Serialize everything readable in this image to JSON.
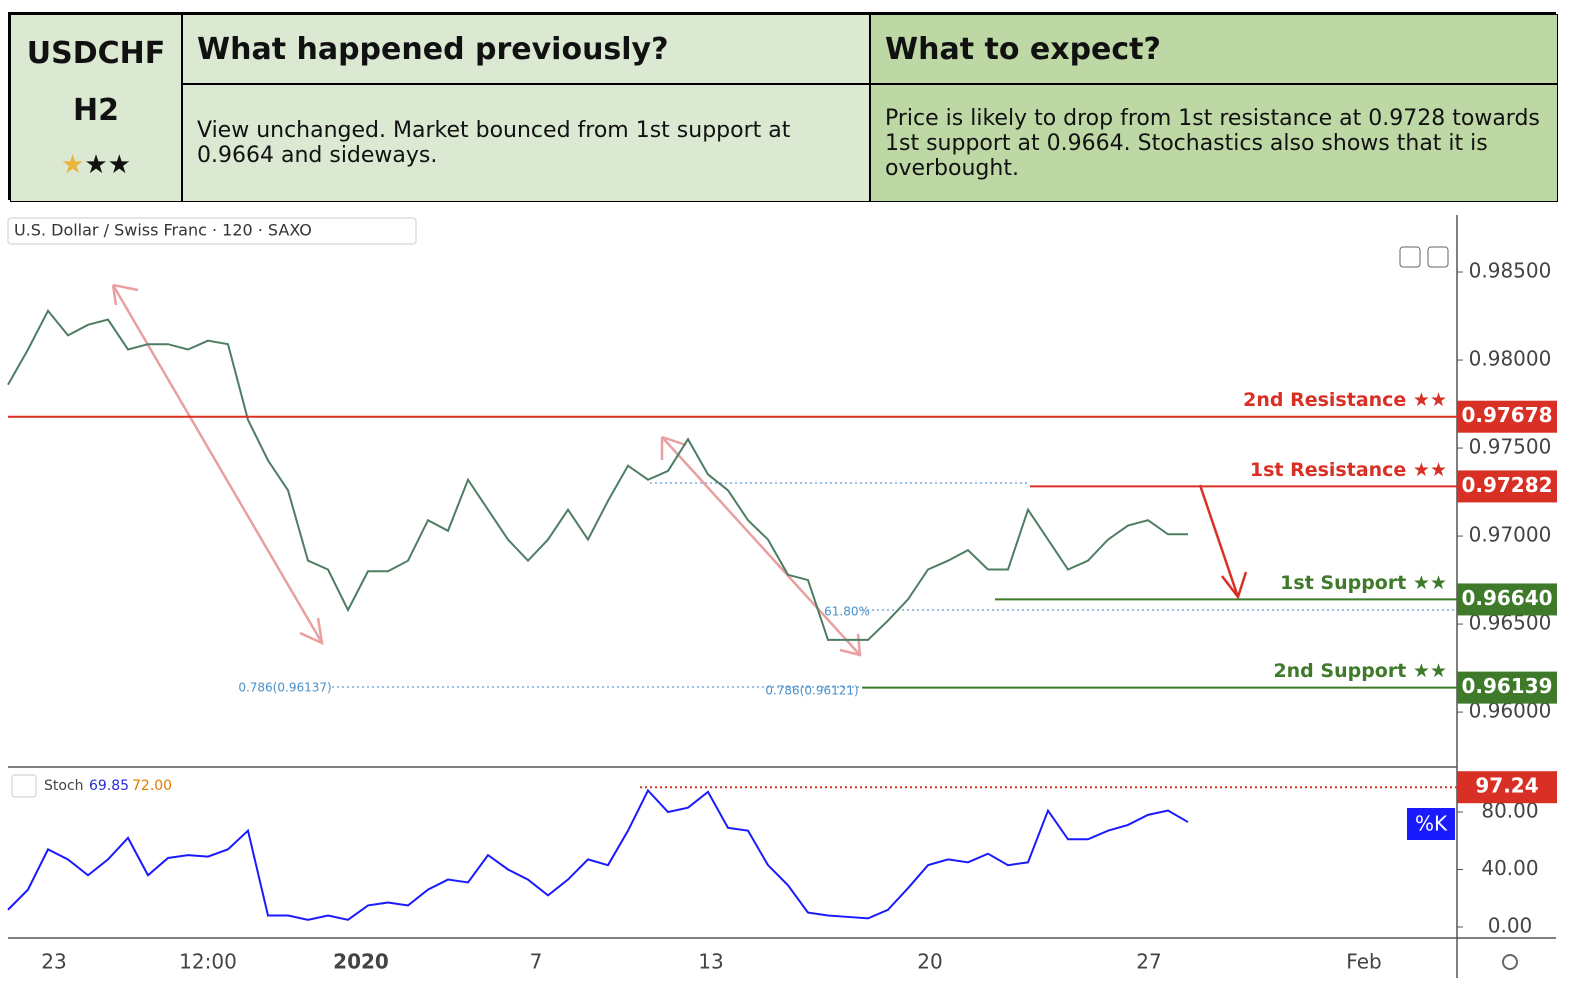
{
  "header": {
    "symbol": "USDCHF",
    "timeframe": "H2",
    "stars": [
      "★",
      "★",
      "★"
    ],
    "columns": [
      "What happened previously?",
      "What to expect?"
    ],
    "texts": [
      "View unchanged. Market bounced from 1st support at 0.9664 and sideways.",
      "Price is likely to drop from 1st resistance at 0.9728 towards 1st support at 0.9664. Stochastics also shows that it is overbought."
    ]
  },
  "chart_data": [
    {
      "type": "line",
      "title": "U.S. Dollar / Swiss Franc · 120 · SAXO",
      "series": [
        {
          "color": "#4e7d62",
          "values": [
            0.9786,
            0.9806,
            0.9828,
            0.9814,
            0.982,
            0.9823,
            0.9806,
            0.9809,
            0.9809,
            0.9806,
            0.9811,
            0.9809,
            0.9766,
            0.9743,
            0.9726,
            0.9686,
            0.9681,
            0.9658,
            0.968,
            0.968,
            0.9686,
            0.9709,
            0.9703,
            0.9732,
            0.9715,
            0.9698,
            0.9686,
            0.9698,
            0.9715,
            0.9698,
            0.972,
            0.974,
            0.9732,
            0.9737,
            0.9755,
            0.9735,
            0.9726,
            0.9709,
            0.9698,
            0.9678,
            0.9675,
            0.9641,
            0.9641,
            0.9641,
            0.9652,
            0.9664,
            0.9681,
            0.9686,
            0.9692,
            0.9681,
            0.9681,
            0.9715,
            0.9698,
            0.9681,
            0.9686,
            0.9698,
            0.9706,
            0.9709,
            0.9701,
            0.9701
          ]
        }
      ],
      "ylim": [
        0.95688,
        0.98824
      ],
      "yticks": [
        {
          "value": 0.96,
          "label": "0.96000"
        },
        {
          "value": 0.965,
          "label": "0.96500"
        },
        {
          "value": 0.97,
          "label": "0.97000"
        },
        {
          "value": 0.975,
          "label": "0.97500"
        },
        {
          "value": 0.98,
          "label": "0.98000"
        },
        {
          "value": 0.985,
          "label": "0.98500"
        }
      ],
      "levels": [
        {
          "name": "2nd Resistance ★★",
          "value": 0.97678,
          "color": "#d93025"
        },
        {
          "name": "1st Resistance ★★",
          "value": 0.97282,
          "color": "#d93025"
        },
        {
          "name": "1st Support ★★",
          "value": 0.9664,
          "label": "0.96640",
          "color": "#3f7a2a"
        },
        {
          "name": "2nd Support ★★",
          "value": 0.96139,
          "color": "#3f7a2a"
        }
      ],
      "annotations": [
        "0.786(0.96137)",
        "0.786(0.96121)",
        "61.80%"
      ]
    },
    {
      "type": "line",
      "title": "Stoch",
      "readouts": [
        {
          "value": 69.85,
          "label": "69.85",
          "color": "#2b2bd6"
        },
        {
          "value": 72,
          "label": "72.00",
          "color": "#e07b00"
        }
      ],
      "series": [
        {
          "name": "%K",
          "color": "#1a1aff",
          "values": [
            12,
            26,
            54,
            47,
            36,
            47,
            62,
            36,
            48,
            50,
            49,
            54,
            67,
            8,
            8,
            5,
            8,
            5,
            15,
            17,
            15,
            26,
            33,
            31,
            50,
            40,
            33,
            22,
            33,
            47,
            43,
            67,
            95,
            80,
            83,
            94,
            69,
            67,
            43,
            29,
            10,
            8,
            7,
            6,
            12,
            27,
            43,
            47,
            45,
            51,
            43,
            45,
            81,
            61,
            61,
            67,
            71,
            78,
            81,
            73
          ]
        }
      ],
      "ylim": [
        -7.65,
        111.3
      ],
      "yticks": [
        {
          "value": 0,
          "label": "0.00"
        },
        {
          "value": 40,
          "label": "40.00"
        },
        {
          "value": 80,
          "label": "80.00"
        }
      ],
      "levels": [
        {
          "value": 97.24,
          "color": "#d93025",
          "style": "dotted"
        }
      ],
      "x_labels": [
        "23",
        "12:00",
        "2020",
        "7",
        "13",
        "20",
        "27",
        "Feb"
      ]
    }
  ]
}
